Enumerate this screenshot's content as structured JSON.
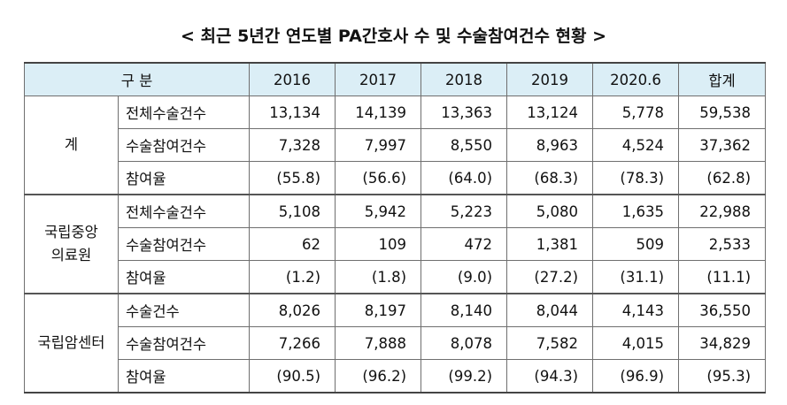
{
  "title": "< 최근 5년간 연도별 PA간호사 수 및 수술참여건수 현황 >",
  "header": {
    "category": "구 분",
    "years": [
      "2016",
      "2017",
      "2018",
      "2019",
      "2020.6",
      "합계"
    ]
  },
  "groups": [
    {
      "name_lines": [
        "계"
      ],
      "rows": [
        {
          "label": "전체수술건수",
          "values": [
            "13,134",
            "14,139",
            "13,363",
            "13,124",
            "5,778",
            "59,538"
          ]
        },
        {
          "label": "수술참여건수",
          "values": [
            "7,328",
            "7,997",
            "8,550",
            "8,963",
            "4,524",
            "37,362"
          ]
        },
        {
          "label": "참여율",
          "values": [
            "(55.8)",
            "(56.6)",
            "(64.0)",
            "(68.3)",
            "(78.3)",
            "(62.8)"
          ]
        }
      ]
    },
    {
      "name_lines": [
        "국립중앙",
        "의료원"
      ],
      "rows": [
        {
          "label": "전체수술건수",
          "values": [
            "5,108",
            "5,942",
            "5,223",
            "5,080",
            "1,635",
            "22,988"
          ]
        },
        {
          "label": "수술참여건수",
          "values": [
            "62",
            "109",
            "472",
            "1,381",
            "509",
            "2,533"
          ]
        },
        {
          "label": "참여율",
          "values": [
            "(1.2)",
            "(1.8)",
            "(9.0)",
            "(27.2)",
            "(31.1)",
            "(11.1)"
          ]
        }
      ]
    },
    {
      "name_lines": [
        "국립암센터"
      ],
      "rows": [
        {
          "label": "수술건수",
          "values": [
            "8,026",
            "8,197",
            "8,140",
            "8,044",
            "4,143",
            "36,550"
          ]
        },
        {
          "label": "수술참여건수",
          "values": [
            "7,266",
            "7,888",
            "8,078",
            "7,582",
            "4,015",
            "34,829"
          ]
        },
        {
          "label": "참여율",
          "values": [
            "(90.5)",
            "(96.2)",
            "(99.2)",
            "(94.3)",
            "(96.9)",
            "(95.3)"
          ]
        }
      ]
    }
  ]
}
